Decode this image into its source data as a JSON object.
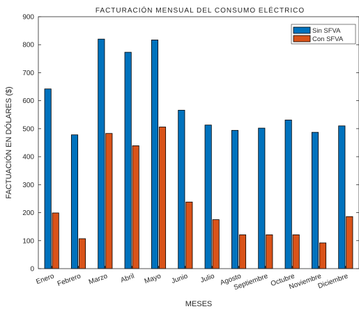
{
  "chart_data": {
    "type": "bar",
    "title": "FACTURACIÓN MENSUAL DEL CONSUMO ELÉCTRICO",
    "xlabel": "MESES",
    "ylabel": "FACTUACIÓN EN DÓLARES ($)",
    "ylim": [
      0,
      900
    ],
    "yticks": [
      "0",
      "100",
      "200",
      "300",
      "400",
      "500",
      "600",
      "700",
      "800",
      "900"
    ],
    "grid": false,
    "legend_position": "top-right",
    "categories": [
      "Enero",
      "Febrero",
      "Marzo",
      "Abril",
      "Mayo",
      "Junio",
      "Julio",
      "Agosto",
      "Septiembre",
      "Octubre",
      "Noviembre",
      "Diciembre"
    ],
    "series": [
      {
        "name": "Sin SFVA",
        "color": "#0072BD",
        "values": [
          642,
          478,
          820,
          773,
          817,
          566,
          513,
          494,
          502,
          531,
          487,
          510
        ]
      },
      {
        "name": "Con SFVA",
        "color": "#D95319",
        "values": [
          199,
          107,
          483,
          439,
          506,
          238,
          175,
          121,
          121,
          121,
          92,
          186
        ]
      }
    ]
  }
}
